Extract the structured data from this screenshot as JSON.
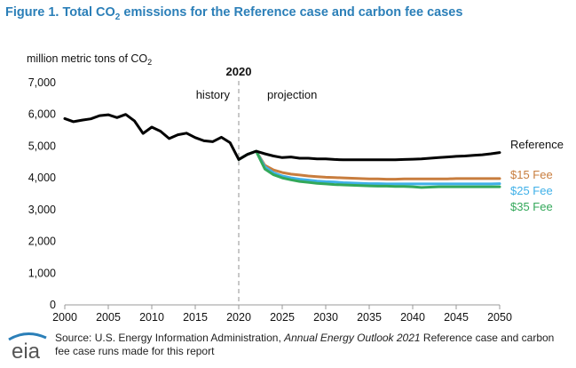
{
  "figure": {
    "title_prefix": "Figure 1. Total CO",
    "title_sub": "2",
    "title_suffix": " emissions for the Reference case and carbon fee cases"
  },
  "chart_data": {
    "type": "line",
    "ylabel_prefix": "million metric tons of CO",
    "ylabel_sub": "2",
    "xlim": [
      2000,
      2050
    ],
    "ylim": [
      0,
      7000
    ],
    "xticks": [
      2000,
      2005,
      2010,
      2015,
      2020,
      2025,
      2030,
      2035,
      2040,
      2045,
      2050
    ],
    "yticks": [
      0,
      1000,
      2000,
      3000,
      4000,
      5000,
      6000,
      7000
    ],
    "ytick_labels": [
      "0",
      "1,000",
      "2,000",
      "3,000",
      "4,000",
      "5,000",
      "6,000",
      "7,000"
    ],
    "grid": false,
    "legend": "inline-right",
    "divider": {
      "x": 2020,
      "label": "2020"
    },
    "annotations": {
      "history": "history",
      "projection": "projection"
    },
    "series": [
      {
        "name": "Reference",
        "color": "#000000",
        "x": [
          2000,
          2001,
          2002,
          2003,
          2004,
          2005,
          2006,
          2007,
          2008,
          2009,
          2010,
          2011,
          2012,
          2013,
          2014,
          2015,
          2016,
          2017,
          2018,
          2019,
          2020,
          2021,
          2022,
          2023,
          2024,
          2025,
          2026,
          2027,
          2028,
          2029,
          2030,
          2031,
          2032,
          2033,
          2034,
          2035,
          2036,
          2037,
          2038,
          2039,
          2040,
          2041,
          2042,
          2043,
          2044,
          2045,
          2046,
          2047,
          2048,
          2049,
          2050
        ],
        "values": [
          5870,
          5770,
          5820,
          5860,
          5960,
          5990,
          5900,
          6000,
          5800,
          5400,
          5600,
          5470,
          5240,
          5360,
          5410,
          5270,
          5170,
          5140,
          5280,
          5110,
          4580,
          4740,
          4840,
          4760,
          4690,
          4640,
          4660,
          4620,
          4620,
          4600,
          4600,
          4580,
          4570,
          4570,
          4570,
          4570,
          4570,
          4570,
          4570,
          4580,
          4590,
          4600,
          4620,
          4640,
          4660,
          4680,
          4690,
          4710,
          4730,
          4760,
          4800
        ]
      },
      {
        "name": "$15 Fee",
        "color": "#c87d3e",
        "x": [
          2020,
          2021,
          2022,
          2023,
          2024,
          2025,
          2026,
          2027,
          2028,
          2029,
          2030,
          2031,
          2032,
          2033,
          2034,
          2035,
          2036,
          2037,
          2038,
          2039,
          2040,
          2041,
          2042,
          2043,
          2044,
          2045,
          2046,
          2047,
          2048,
          2049,
          2050
        ],
        "values": [
          4580,
          4740,
          4840,
          4400,
          4250,
          4170,
          4120,
          4090,
          4060,
          4040,
          4020,
          4010,
          4000,
          3990,
          3980,
          3970,
          3970,
          3960,
          3960,
          3970,
          3970,
          3970,
          3970,
          3970,
          3970,
          3980,
          3980,
          3980,
          3980,
          3980,
          3980
        ]
      },
      {
        "name": "$25 Fee",
        "color": "#3fb0e8",
        "x": [
          2020,
          2021,
          2022,
          2023,
          2024,
          2025,
          2026,
          2027,
          2028,
          2029,
          2030,
          2031,
          2032,
          2033,
          2034,
          2035,
          2036,
          2037,
          2038,
          2039,
          2040,
          2041,
          2042,
          2043,
          2044,
          2045,
          2046,
          2047,
          2048,
          2049,
          2050
        ],
        "values": [
          4580,
          4740,
          4840,
          4350,
          4160,
          4060,
          4000,
          3960,
          3930,
          3900,
          3880,
          3870,
          3850,
          3840,
          3830,
          3820,
          3820,
          3810,
          3810,
          3810,
          3810,
          3810,
          3810,
          3810,
          3810,
          3810,
          3810,
          3810,
          3810,
          3810,
          3820
        ]
      },
      {
        "name": "$35 Fee",
        "color": "#33a85a",
        "x": [
          2020,
          2021,
          2022,
          2023,
          2024,
          2025,
          2026,
          2027,
          2028,
          2029,
          2030,
          2031,
          2032,
          2033,
          2034,
          2035,
          2036,
          2037,
          2038,
          2039,
          2040,
          2041,
          2042,
          2043,
          2044,
          2045,
          2046,
          2047,
          2048,
          2049,
          2050
        ],
        "values": [
          4580,
          4740,
          4840,
          4280,
          4100,
          4000,
          3940,
          3890,
          3860,
          3830,
          3810,
          3790,
          3780,
          3770,
          3760,
          3750,
          3740,
          3740,
          3730,
          3730,
          3720,
          3700,
          3710,
          3720,
          3720,
          3720,
          3720,
          3720,
          3720,
          3720,
          3720
        ]
      }
    ]
  },
  "source": {
    "prefix": "Source: U.S. Energy Information Administration, ",
    "italic": "Annual Energy Outlook 2021",
    "suffix": " Reference case and carbon fee case runs made for this report"
  },
  "logo": {
    "text": "eia",
    "accent_color": "#2b7fb8"
  }
}
